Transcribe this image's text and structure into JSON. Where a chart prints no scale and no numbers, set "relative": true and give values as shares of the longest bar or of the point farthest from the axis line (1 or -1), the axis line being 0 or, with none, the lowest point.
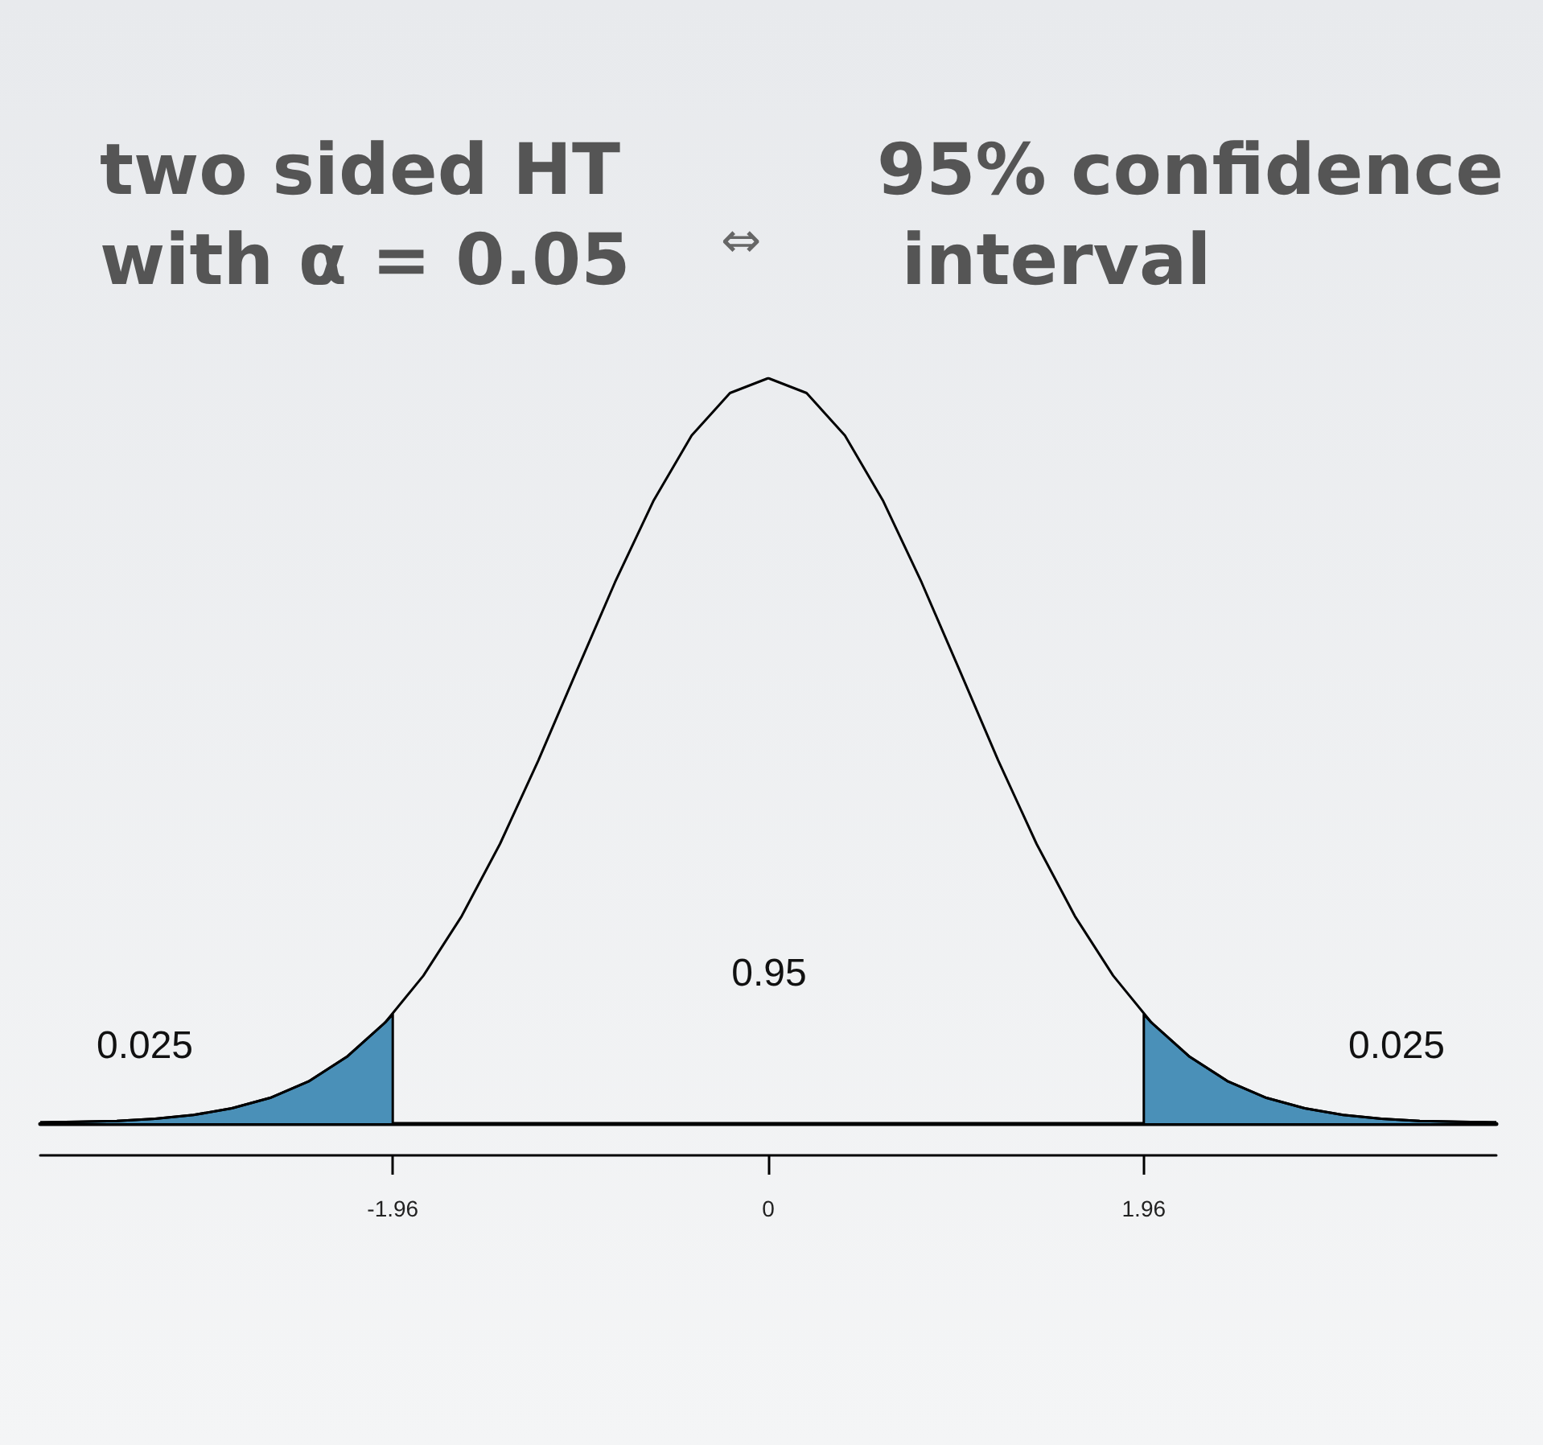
{
  "chart_data": {
    "type": "line",
    "relative": true,
    "marker": "none",
    "line_style": "solid",
    "grid": false,
    "xlim": [
      -3.8,
      3.8
    ],
    "xticks": [
      -1.96,
      0,
      1.96
    ],
    "series": [
      {
        "color": "#4a90b8",
        "type": "area",
        "x": [
          -3.8,
          -3.6,
          -3.4,
          -3.2,
          -3.0,
          -2.8,
          -2.6,
          -2.4,
          -2.2,
          -2.0,
          -1.96,
          -1.96
        ],
        "values": [
          0.001,
          0.002,
          0.003,
          0.006,
          0.011,
          0.02,
          0.034,
          0.056,
          0.089,
          0.135,
          0.146,
          0
        ]
      },
      {
        "color": "#4a90b8",
        "type": "area",
        "x": [
          1.96,
          1.96,
          2.0,
          2.2,
          2.4,
          2.6,
          2.8,
          3.0,
          3.2,
          3.4,
          3.6,
          3.8
        ],
        "values": [
          0,
          0.146,
          0.135,
          0.089,
          0.056,
          0.034,
          0.02,
          0.011,
          0.006,
          0.003,
          0.002,
          0.001
        ]
      },
      {
        "color": "#000000",
        "x": [
          -3.8,
          -3.6,
          -3.4,
          -3.2,
          -3.0,
          -2.8,
          -2.6,
          -2.4,
          -2.2,
          -2.0,
          -1.8,
          -1.6,
          -1.4,
          -1.2,
          -1.0,
          -0.8,
          -0.6,
          -0.4,
          -0.2,
          0,
          0.2,
          0.4,
          0.6,
          0.8,
          1.0,
          1.2,
          1.4,
          1.6,
          1.8,
          2.0,
          2.2,
          2.4,
          2.6,
          2.8,
          3.0,
          3.2,
          3.4,
          3.6,
          3.8
        ],
        "values": [
          0.001,
          0.002,
          0.003,
          0.006,
          0.011,
          0.02,
          0.034,
          0.056,
          0.089,
          0.135,
          0.198,
          0.278,
          0.375,
          0.487,
          0.607,
          0.726,
          0.835,
          0.923,
          0.98,
          1,
          0.98,
          0.923,
          0.835,
          0.726,
          0.607,
          0.487,
          0.375,
          0.278,
          0.198,
          0.135,
          0.089,
          0.056,
          0.034,
          0.02,
          0.011,
          0.006,
          0.003,
          0.002,
          0.001
        ]
      }
    ],
    "annotations": [
      "two sided HT with α = 0.05",
      "⇔",
      "95% confidence interval",
      "0.025",
      "0.95",
      "0.025"
    ]
  }
}
